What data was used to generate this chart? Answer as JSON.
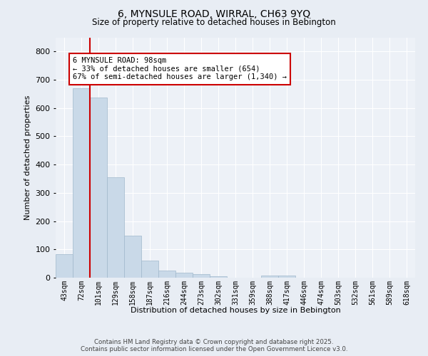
{
  "title1": "6, MYNSULE ROAD, WIRRAL, CH63 9YQ",
  "title2": "Size of property relative to detached houses in Bebington",
  "xlabel": "Distribution of detached houses by size in Bebington",
  "ylabel": "Number of detached properties",
  "categories": [
    "43sqm",
    "72sqm",
    "101sqm",
    "129sqm",
    "158sqm",
    "187sqm",
    "216sqm",
    "244sqm",
    "273sqm",
    "302sqm",
    "331sqm",
    "359sqm",
    "388sqm",
    "417sqm",
    "446sqm",
    "474sqm",
    "503sqm",
    "532sqm",
    "561sqm",
    "589sqm",
    "618sqm"
  ],
  "values": [
    83,
    670,
    638,
    355,
    148,
    60,
    25,
    18,
    12,
    6,
    0,
    0,
    7,
    7,
    0,
    0,
    0,
    0,
    0,
    0,
    0
  ],
  "bar_color": "#c9d9e8",
  "bar_edgecolor": "#a0b8cc",
  "vline_color": "#cc0000",
  "annotation_text": "6 MYNSULE ROAD: 98sqm\n← 33% of detached houses are smaller (654)\n67% of semi-detached houses are larger (1,340) →",
  "annotation_box_color": "#ffffff",
  "annotation_box_edgecolor": "#cc0000",
  "ylim": [
    0,
    850
  ],
  "yticks": [
    0,
    100,
    200,
    300,
    400,
    500,
    600,
    700,
    800
  ],
  "background_color": "#e8edf4",
  "plot_background_color": "#edf1f7",
  "grid_color": "#ffffff",
  "footer1": "Contains HM Land Registry data © Crown copyright and database right 2025.",
  "footer2": "Contains public sector information licensed under the Open Government Licence v3.0."
}
